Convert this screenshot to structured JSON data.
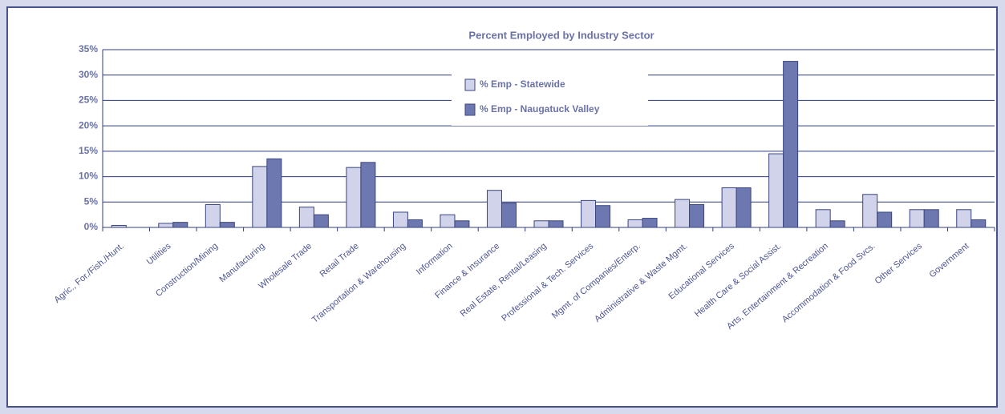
{
  "chart_data": {
    "type": "bar",
    "title": "Percent Employed by Industry Sector",
    "categories": [
      "Agric., For./Fish./Hunt.",
      "Utilities",
      "Construction/Mining",
      "Manufacturing",
      "Wholesale Trade",
      "Retail Trade",
      "Transportation & Warehousing",
      "Information",
      "Finance & Insurance",
      "Real Estate, Rental/Leasing",
      "Professional & Tech. Services",
      "Mgmt. of Companies/Enterp.",
      "Administrative & Waste Mgmt.",
      "Educational Services",
      "Health Care & Social Assist.",
      "Arts, Entertainment & Recreation",
      "Accommodation & Food Svcs.",
      "Other Services",
      "Government"
    ],
    "series": [
      {
        "name": "% Emp - Statewide",
        "color": "#d0d3ea",
        "values": [
          0.4,
          0.8,
          4.5,
          12.0,
          4.0,
          11.8,
          3.0,
          2.5,
          7.3,
          1.3,
          5.3,
          1.5,
          5.5,
          7.8,
          14.5,
          3.5,
          6.5,
          3.5,
          3.5
        ]
      },
      {
        "name": "% Emp - Naugatuck Valley",
        "color": "#6e78b0",
        "values": [
          0,
          1.0,
          1.0,
          13.5,
          2.5,
          12.8,
          1.5,
          1.3,
          4.8,
          1.3,
          4.3,
          1.8,
          4.5,
          7.8,
          32.7,
          1.3,
          3.0,
          3.5,
          1.5
        ]
      }
    ],
    "ylim": [
      0,
      35
    ],
    "yticks": [
      {
        "value": 0,
        "label": "0%"
      },
      {
        "value": 5,
        "label": "5%"
      },
      {
        "value": 10,
        "label": "10%"
      },
      {
        "value": 15,
        "label": "15%"
      },
      {
        "value": 20,
        "label": "20%"
      },
      {
        "value": 25,
        "label": "25%"
      },
      {
        "value": 30,
        "label": "30%"
      },
      {
        "value": 35,
        "label": "35%"
      }
    ],
    "grid": true
  }
}
